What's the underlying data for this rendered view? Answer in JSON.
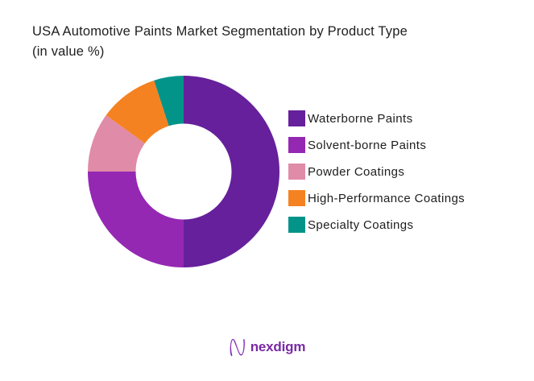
{
  "header": {
    "title_line1": "USA Automotive Paints Market Segmentation by Product Type",
    "title_line2": "(in value %)"
  },
  "chart_data": {
    "type": "pie",
    "subtype": "donut",
    "title": "USA Automotive Paints Market Segmentation by Product Type (in value %)",
    "unit": "percent of market value",
    "categories": [
      "Waterborne Paints",
      "Solvent-borne Paints",
      "Powder Coatings",
      "High-Performance Coatings",
      "Specialty Coatings"
    ],
    "values": [
      50,
      25,
      10,
      10,
      5
    ],
    "colors": [
      "#66209B",
      "#9428B3",
      "#E08BA7",
      "#F58220",
      "#029489"
    ],
    "start_angle_deg": 0,
    "direction": "clockwise",
    "donut_hole_ratio": 0.5,
    "legend_position": "right",
    "data_labels_shown": false
  },
  "legend": {
    "items": [
      {
        "label": "Waterborne Paints",
        "color": "#66209B"
      },
      {
        "label": "Solvent-borne Paints",
        "color": "#9428B3"
      },
      {
        "label": "Powder Coatings",
        "color": "#E08BA7"
      },
      {
        "label": "High-Performance Coatings",
        "color": "#F58220"
      },
      {
        "label": "Specialty Coatings",
        "color": "#029489"
      }
    ]
  },
  "footer": {
    "brand_name": "nexdigm",
    "brand_color": "#7A2AA5",
    "logo_icon": "nexdigm-wave-n-icon"
  }
}
